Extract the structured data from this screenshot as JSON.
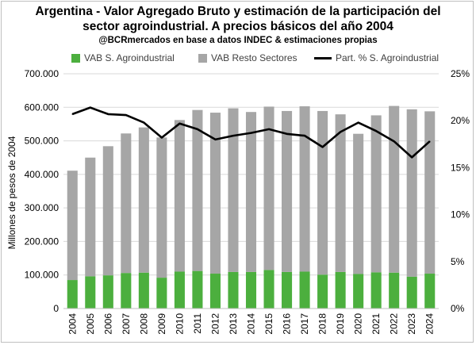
{
  "chart_data": {
    "type": "bar",
    "title": "Argentina - Valor Agregado Bruto y estimación de la participación del",
    "title_line2": "sector agroindustrial. A precios básicos del año 2004",
    "subtitle": "@BCRmercados en base a datos INDEC & estimaciones propias",
    "ylabel": "Millones de pesos de 2004",
    "xlabel": "",
    "stacked": true,
    "ylim": [
      0,
      700000
    ],
    "y2lim": [
      0,
      25
    ],
    "yticks": [
      "0",
      "100.000",
      "200.000",
      "300.000",
      "400.000",
      "500.000",
      "600.000",
      "700.000"
    ],
    "y2ticks": [
      "0%",
      "5%",
      "10%",
      "15%",
      "20%",
      "25%"
    ],
    "categories": [
      "2004",
      "2005",
      "2006",
      "2007",
      "2008",
      "2009",
      "2010",
      "2011",
      "2012",
      "2013",
      "2014",
      "2015",
      "2016",
      "2017",
      "2018",
      "2019",
      "2020",
      "2021",
      "2022",
      "2023",
      "2024"
    ],
    "series": [
      {
        "name": "VAB S. Agroindustrial",
        "type": "bar",
        "color": "#4caf3e",
        "values": [
          85000,
          96000,
          99000,
          106000,
          107000,
          92000,
          110000,
          112000,
          104000,
          109000,
          109000,
          115000,
          109000,
          110000,
          101000,
          109000,
          103000,
          108000,
          107000,
          95000,
          104000
        ]
      },
      {
        "name": "VAB Resto Sectores",
        "type": "bar",
        "color": "#a6a6a6",
        "values": [
          326000,
          354000,
          385000,
          416000,
          433000,
          418000,
          452000,
          480000,
          480000,
          488000,
          477000,
          487000,
          480000,
          493000,
          488000,
          470000,
          418000,
          468000,
          497000,
          499000,
          484000
        ]
      },
      {
        "name": "Part. % S. Agroindustrial",
        "type": "line",
        "axis": "right",
        "color": "#000000",
        "values": [
          20.7,
          21.4,
          20.7,
          20.6,
          19.8,
          18.2,
          19.7,
          19.1,
          18.0,
          18.4,
          18.7,
          19.1,
          18.6,
          18.4,
          17.2,
          18.8,
          19.8,
          18.9,
          17.8,
          16.1,
          17.8
        ]
      }
    ],
    "grid": true,
    "legend_position": "top"
  }
}
